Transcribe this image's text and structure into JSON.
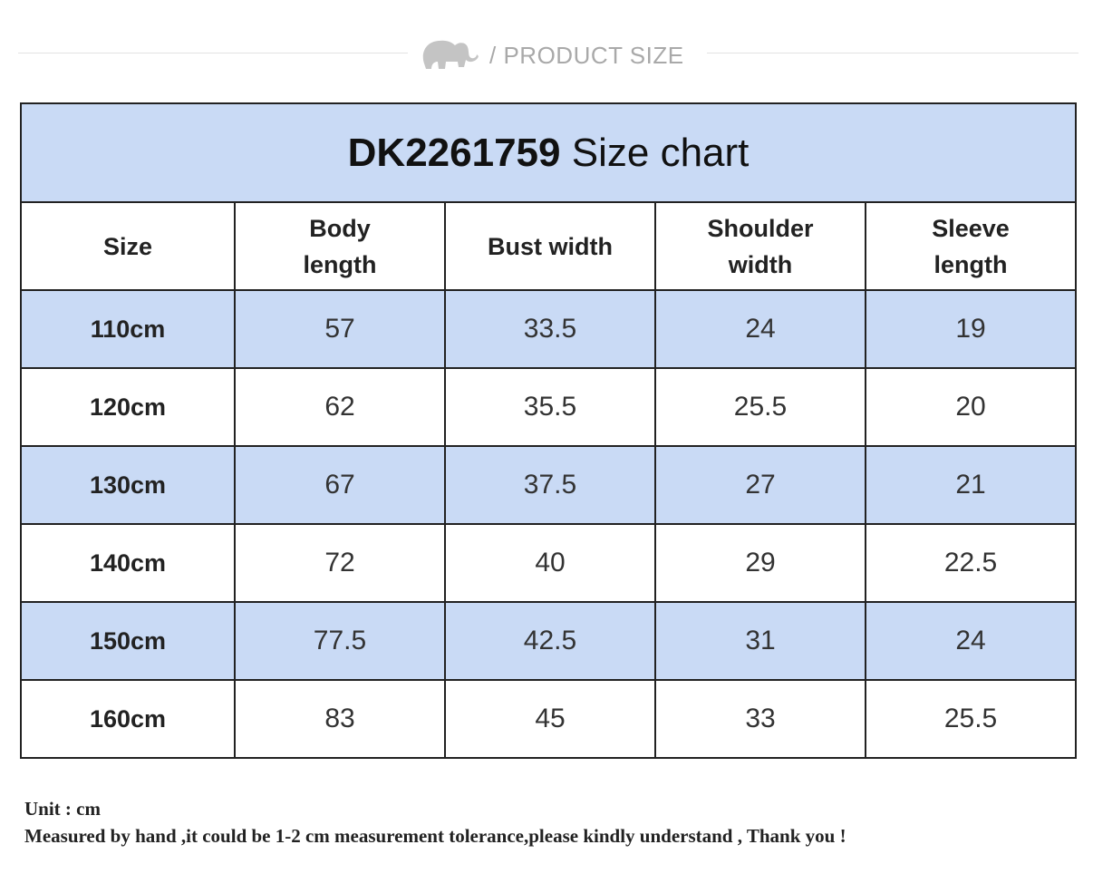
{
  "banner": {
    "label": "/ PRODUCT SIZE"
  },
  "title": {
    "code": "DK2261759",
    "text": "Size chart"
  },
  "table": {
    "header": [
      "Size",
      "Body length",
      "Bust width",
      "Shoulder width",
      "Sleeve length"
    ],
    "rows": [
      [
        "110cm",
        "57",
        "33.5",
        "24",
        "19"
      ],
      [
        "120cm",
        "62",
        "35.5",
        "25.5",
        "20"
      ],
      [
        "130cm",
        "67",
        "37.5",
        "27",
        "21"
      ],
      [
        "140cm",
        "72",
        "40",
        "29",
        "22.5"
      ],
      [
        "150cm",
        "77.5",
        "42.5",
        "31",
        "24"
      ],
      [
        "160cm",
        "83",
        "45",
        "33",
        "25.5"
      ]
    ]
  },
  "notes": [
    "Unit : cm",
    "Measured by hand ,it could be 1-2 cm measurement tolerance,please kindly understand , Thank you !"
  ]
}
